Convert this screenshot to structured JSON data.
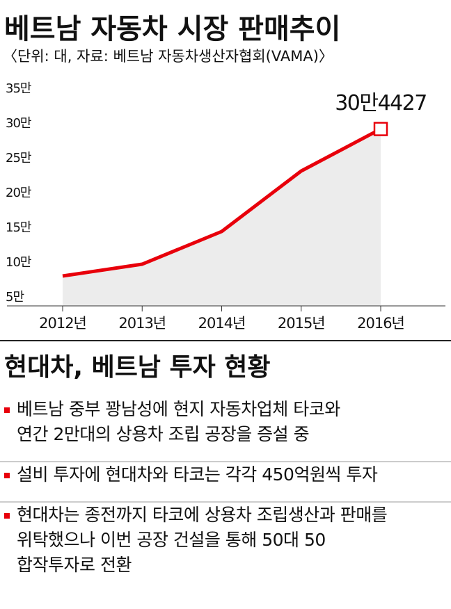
{
  "chart_data": {
    "type": "line",
    "title": "베트남 자동차 시장 판매추이",
    "subtitle": "〈단위: 대, 자료: 베트남 자동차생산자협회(VAMA)〉",
    "categories": [
      "2012년",
      "2013년",
      "2014년",
      "2015년",
      "2016년"
    ],
    "values": [
      93000,
      110000,
      157000,
      244000,
      304427
    ],
    "value_labels": [
      null,
      null,
      null,
      null,
      "30만4427"
    ],
    "color": "#e8000b",
    "area_color": "#ececec",
    "ylim": [
      50000,
      350000
    ],
    "yticks": [
      {
        "value": 50000,
        "label": "5만"
      },
      {
        "value": 100000,
        "label": "10만"
      },
      {
        "value": 150000,
        "label": "15만"
      },
      {
        "value": 200000,
        "label": "20만"
      },
      {
        "value": 250000,
        "label": "25만"
      },
      {
        "value": 300000,
        "label": "30만"
      },
      {
        "value": 350000,
        "label": "35만"
      }
    ]
  },
  "section": {
    "title": "현대차, 베트남 투자 현황",
    "items": [
      [
        "베트남 중부 꽝남성에 현지 자동차업체 타코와",
        "연간 2만대의 상용차 조립 공장을 증설 중"
      ],
      [
        "설비 투자에 현대차와 타코는 각각 450억원씩 투자"
      ],
      [
        "현대차는 종전까지 타코에 상용차 조립생산과 판매를",
        "위탁했으나 이번 공장 건설을 통해 50대 50",
        "합작투자로 전환"
      ]
    ]
  }
}
